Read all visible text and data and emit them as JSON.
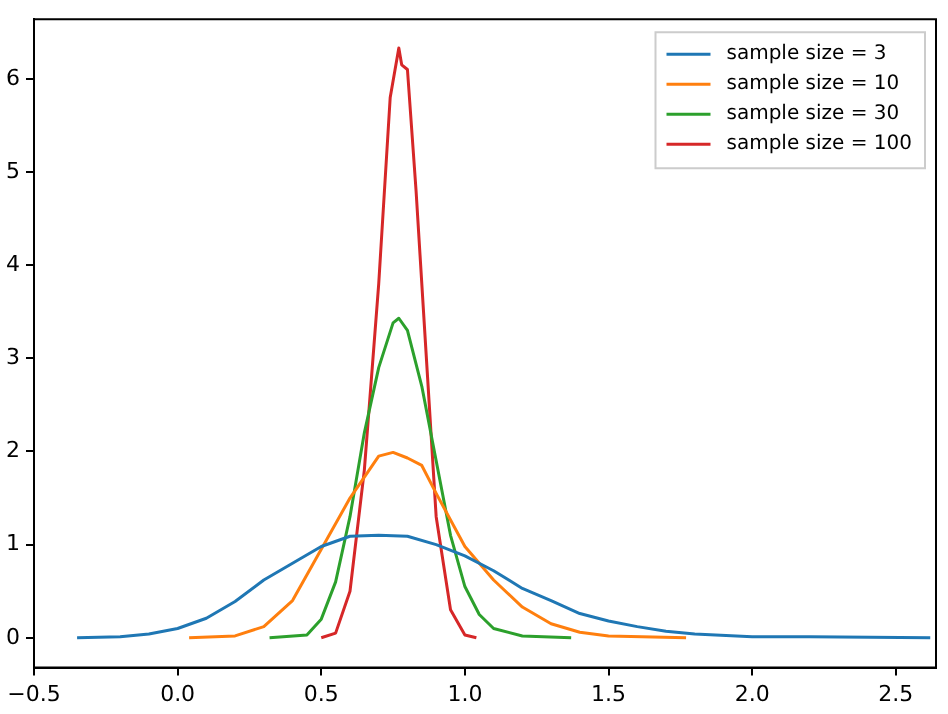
{
  "chart_data": {
    "type": "line",
    "series": [
      {
        "name": "sample size = 3",
        "color": "#1f77b4",
        "x": [
          -0.35,
          -0.2,
          -0.1,
          0,
          0.1,
          0.2,
          0.3,
          0.4,
          0.5,
          0.6,
          0.7,
          0.8,
          0.9,
          1.0,
          1.1,
          1.2,
          1.3,
          1.4,
          1.5,
          1.6,
          1.7,
          1.8,
          2.0,
          2.2,
          2.62
        ],
        "values": [
          0,
          0.01,
          0.04,
          0.1,
          0.21,
          0.39,
          0.62,
          0.8,
          0.98,
          1.09,
          1.1,
          1.09,
          1.0,
          0.88,
          0.72,
          0.53,
          0.4,
          0.26,
          0.18,
          0.12,
          0.07,
          0.04,
          0.01,
          0.01,
          0
        ]
      },
      {
        "name": "sample size = 10",
        "color": "#ff7f0e",
        "x": [
          0.04,
          0.2,
          0.3,
          0.4,
          0.5,
          0.6,
          0.7,
          0.75,
          0.8,
          0.85,
          0.9,
          1.0,
          1.1,
          1.2,
          1.3,
          1.4,
          1.5,
          1.77
        ],
        "values": [
          0,
          0.02,
          0.12,
          0.4,
          0.95,
          1.5,
          1.95,
          1.99,
          1.93,
          1.85,
          1.55,
          0.98,
          0.62,
          0.33,
          0.15,
          0.06,
          0.02,
          0
        ]
      },
      {
        "name": "sample size = 30",
        "color": "#2ca02c",
        "x": [
          0.32,
          0.45,
          0.5,
          0.55,
          0.6,
          0.65,
          0.7,
          0.75,
          0.77,
          0.8,
          0.85,
          0.9,
          0.95,
          1.0,
          1.05,
          1.1,
          1.2,
          1.37
        ],
        "values": [
          0,
          0.03,
          0.2,
          0.6,
          1.3,
          2.2,
          2.9,
          3.38,
          3.43,
          3.3,
          2.7,
          1.9,
          1.1,
          0.55,
          0.25,
          0.1,
          0.02,
          0
        ]
      },
      {
        "name": "sample size = 100",
        "color": "#d62728",
        "x": [
          0.5,
          0.55,
          0.6,
          0.65,
          0.7,
          0.74,
          0.77,
          0.78,
          0.8,
          0.83,
          0.87,
          0.9,
          0.95,
          1.0,
          1.04
        ],
        "values": [
          0,
          0.05,
          0.5,
          1.8,
          3.8,
          5.8,
          6.33,
          6.15,
          6.1,
          4.8,
          2.8,
          1.3,
          0.3,
          0.03,
          0
        ]
      }
    ],
    "xlim": [
      -0.5,
      2.64
    ],
    "ylim": [
      -0.32,
      6.64
    ],
    "xticks": [
      {
        "value": -0.5,
        "label": "−0.5"
      },
      {
        "value": 0,
        "label": "0.0"
      },
      {
        "value": 0.5,
        "label": "0.5"
      },
      {
        "value": 1,
        "label": "1.0"
      },
      {
        "value": 1.5,
        "label": "1.5"
      },
      {
        "value": 2,
        "label": "2.0"
      },
      {
        "value": 2.5,
        "label": "2.5"
      }
    ],
    "yticks": [
      0,
      1,
      2,
      3,
      4,
      5,
      6
    ],
    "legend": "top right",
    "grid": false,
    "marker": "none",
    "line_style": "solid"
  }
}
